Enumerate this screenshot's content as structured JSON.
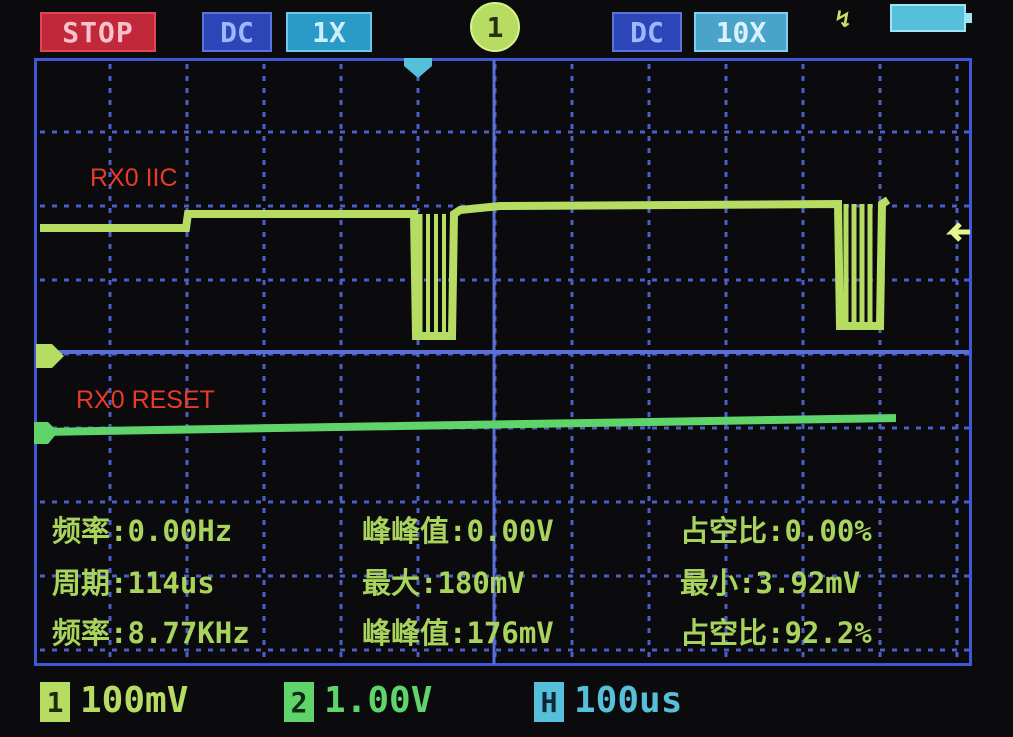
{
  "status": {
    "run_state": "STOP",
    "ch1_coupling": "DC",
    "ch1_probe": "1X",
    "active_channel": "1",
    "ch2_coupling": "DC",
    "ch2_probe": "10X"
  },
  "traces": {
    "ch1_label": "RX0 IIC",
    "ch2_label": "RX0 RESET"
  },
  "measurements": [
    {
      "label": "频率:",
      "value": "0.00Hz"
    },
    {
      "label": "峰峰值:",
      "value": "0.00V"
    },
    {
      "label": "占空比:",
      "value": "0.00%"
    },
    {
      "label": "周期:",
      "value": "114us"
    },
    {
      "label": "最大:",
      "value": "180mV"
    },
    {
      "label": "最小:",
      "value": "3.92mV"
    },
    {
      "label": "频率:",
      "value": "8.77KHz"
    },
    {
      "label": "峰峰值:",
      "value": "176mV"
    },
    {
      "label": "占空比:",
      "value": "92.2%"
    }
  ],
  "scales": {
    "ch1_tag": "1",
    "ch1_volts_div": "100mV",
    "ch2_tag": "2",
    "ch2_volts_div": "1.00V",
    "time_tag": "H",
    "time_div": "100us"
  },
  "colors": {
    "ch1": "#b6dd62",
    "ch2": "#5fd46a",
    "grid": "#5a6fd8",
    "label": "#e83b2a",
    "time": "#56bfd9"
  }
}
